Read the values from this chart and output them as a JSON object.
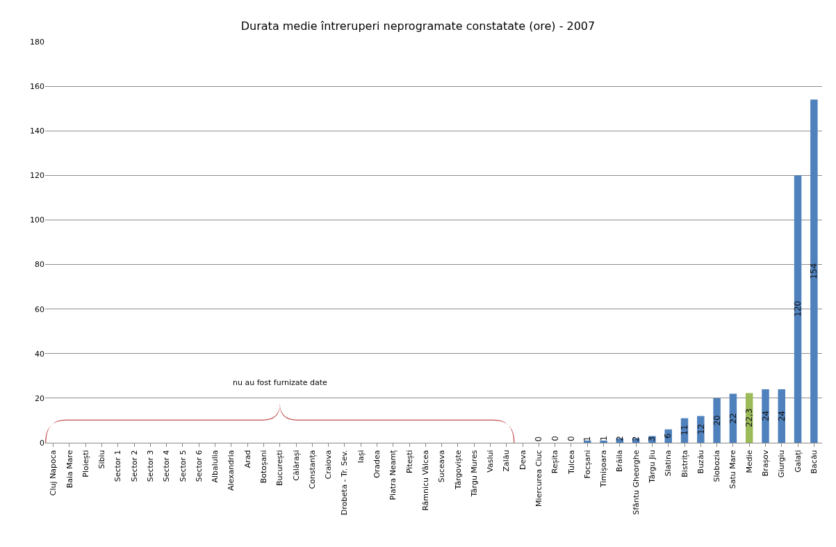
{
  "chart_data": {
    "type": "bar",
    "title": "Durata medie întreruperi neprogramate constatate (ore) - 2007",
    "categories": [
      "Cluj Napoca",
      "Baia Mare",
      "Ploiești",
      "Sibiu",
      "Sector 1",
      "Sector 2",
      "Sector 3",
      "Sector 4",
      "Sector 5",
      "Sector 6",
      "Albalulia",
      "Alexandria",
      "Arad",
      "Botoșani",
      "București",
      "Călărași",
      "Constanța",
      "Craiova",
      "Drobeta - Tr. Sev.",
      "Iași",
      "Oradea",
      "Piatra Neamț",
      "Pitești",
      "Râmnicu Vâlcea",
      "Suceava",
      "Târgoviște",
      "Târgu Mures",
      "Vaslui",
      "Zalău",
      "Deva",
      "Miercurea Ciuc",
      "Reșita",
      "Tulcea",
      "Focșani",
      "Timișoara",
      "Brăila",
      "Sfântu Gheorghe",
      "Târgu Jiu",
      "Slatina",
      "Bistrița",
      "Buzău",
      "Slobozia",
      "Satu Mare",
      "Medie",
      "Brașov",
      "Giurgiu",
      "Galați",
      "Bacău"
    ],
    "values": [
      null,
      null,
      null,
      null,
      null,
      null,
      null,
      null,
      null,
      null,
      null,
      null,
      null,
      null,
      null,
      null,
      null,
      null,
      null,
      null,
      null,
      null,
      null,
      null,
      null,
      null,
      null,
      null,
      null,
      null,
      0,
      0,
      0,
      1,
      1,
      2,
      2,
      3,
      6,
      11,
      12,
      20,
      22,
      22.3,
      24,
      24,
      120,
      154
    ],
    "value_labels": [
      null,
      null,
      null,
      null,
      null,
      null,
      null,
      null,
      null,
      null,
      null,
      null,
      null,
      null,
      null,
      null,
      null,
      null,
      null,
      null,
      null,
      null,
      null,
      null,
      null,
      null,
      null,
      null,
      null,
      null,
      "0",
      "0",
      "0",
      "1",
      "1",
      "2",
      "2",
      "3",
      "6",
      "11",
      "12",
      "20",
      "22",
      "22,3",
      "24",
      "24",
      "120",
      "154"
    ],
    "colors": [
      "#4f81bd",
      "#4f81bd",
      "#4f81bd",
      "#4f81bd",
      "#4f81bd",
      "#4f81bd",
      "#4f81bd",
      "#4f81bd",
      "#4f81bd",
      "#4f81bd",
      "#4f81bd",
      "#4f81bd",
      "#4f81bd",
      "#4f81bd",
      "#4f81bd",
      "#4f81bd",
      "#4f81bd",
      "#4f81bd",
      "#4f81bd",
      "#4f81bd",
      "#4f81bd",
      "#4f81bd",
      "#4f81bd",
      "#4f81bd",
      "#4f81bd",
      "#4f81bd",
      "#4f81bd",
      "#4f81bd",
      "#4f81bd",
      "#4f81bd",
      "#4f81bd",
      "#4f81bd",
      "#4f81bd",
      "#4f81bd",
      "#4f81bd",
      "#4f81bd",
      "#4f81bd",
      "#4f81bd",
      "#4f81bd",
      "#4f81bd",
      "#4f81bd",
      "#4f81bd",
      "#4f81bd",
      "#9bbb59",
      "#4f81bd",
      "#4f81bd",
      "#4f81bd",
      "#4f81bd"
    ],
    "ylim": [
      0,
      180
    ],
    "yticks": [
      0,
      20,
      40,
      60,
      80,
      100,
      120,
      140,
      160,
      180
    ],
    "grid": "y",
    "annotations": [
      "nu au fost furnizate date"
    ]
  }
}
